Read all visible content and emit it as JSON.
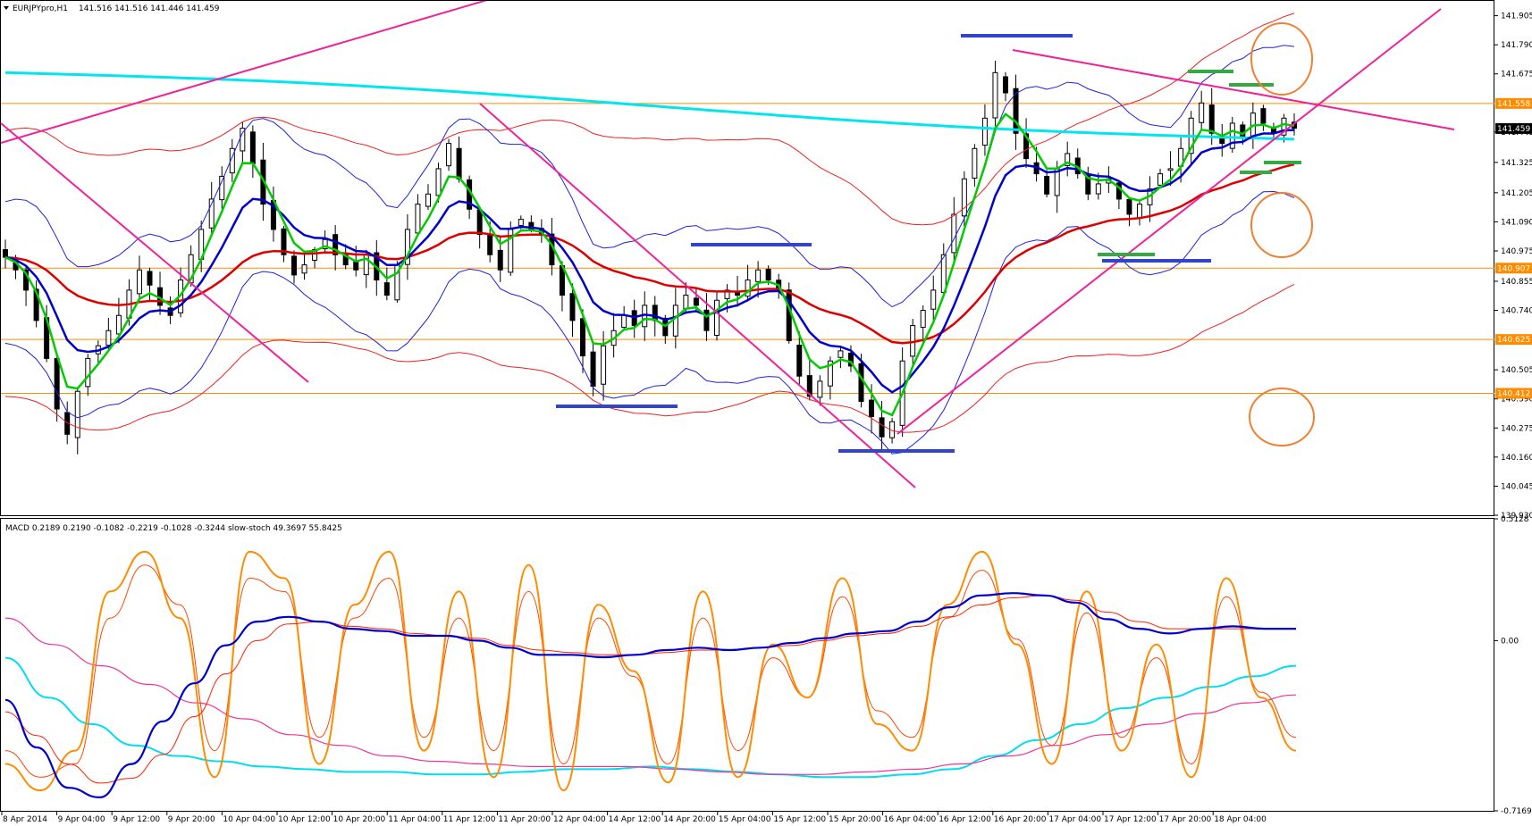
{
  "window": {
    "title": "EURJPYpro,H1",
    "ohlc": "141.516 141.516 141.446 141.459"
  },
  "chart_data": [
    {
      "type": "candlestick",
      "symbol": "EURJPYpro",
      "timeframe": "H1",
      "ylim": [
        139.93,
        141.96
      ],
      "y_ticks": [
        "141.905",
        "141.790",
        "141.675",
        "141.445",
        "141.325",
        "141.205",
        "141.090",
        "140.975",
        "140.855",
        "140.740",
        "140.505",
        "140.390",
        "140.275",
        "140.160",
        "140.045",
        "139.930"
      ],
      "x_ticks": [
        "8 Apr 2014",
        "9 Apr 04:00",
        "9 Apr 12:00",
        "9 Apr 20:00",
        "10 Apr 04:00",
        "10 Apr 12:00",
        "10 Apr 20:00",
        "11 Apr 04:00",
        "11 Apr 12:00",
        "11 Apr 20:00",
        "12 Apr 04:00",
        "14 Apr 12:00",
        "14 Apr 20:00",
        "15 Apr 04:00",
        "15 Apr 12:00",
        "15 Apr 20:00",
        "16 Apr 04:00",
        "16 Apr 12:00",
        "16 Apr 20:00",
        "17 Apr 04:00",
        "17 Apr 12:00",
        "17 Apr 20:00",
        "18 Apr 04:00"
      ],
      "price_levels": [
        {
          "value": "141.558",
          "color": "#FF8C00"
        },
        {
          "value": "140.907",
          "color": "#FF8C00"
        },
        {
          "value": "140.625",
          "color": "#FF8C00"
        },
        {
          "value": "140.412",
          "color": "#FF8C00"
        }
      ],
      "current_price": "141.459",
      "close_path": [
        140.95,
        140.9,
        140.82,
        140.7,
        140.55,
        140.35,
        140.25,
        140.42,
        140.55,
        140.6,
        140.66,
        140.72,
        140.82,
        140.9,
        140.84,
        140.76,
        140.72,
        140.86,
        140.96,
        141.06,
        141.18,
        141.27,
        141.38,
        141.46,
        141.32,
        141.16,
        141.06,
        140.96,
        140.88,
        140.92,
        140.98,
        141.02,
        140.96,
        140.92,
        140.9,
        140.96,
        140.86,
        140.8,
        140.92,
        141.06,
        141.16,
        141.2,
        141.3,
        141.4,
        141.26,
        141.14,
        141.04,
        140.96,
        140.9,
        141.06,
        141.1,
        141.06,
        141.04,
        140.92,
        140.8,
        140.7,
        140.56,
        140.44,
        140.6,
        140.66,
        140.72,
        140.68,
        140.76,
        140.7,
        140.64,
        140.76,
        140.8,
        140.76,
        140.66,
        140.78,
        140.82,
        140.8,
        140.86,
        140.9,
        140.86,
        140.82,
        140.62,
        140.48,
        140.4,
        140.46,
        140.54,
        140.58,
        140.52,
        140.38,
        140.32,
        140.24,
        140.3,
        140.54,
        140.68,
        140.74,
        140.82,
        140.96,
        141.12,
        141.26,
        141.38,
        141.5,
        141.68,
        141.6,
        141.44,
        141.34,
        141.28,
        141.2,
        141.3,
        141.36,
        141.28,
        141.2,
        141.24,
        141.26,
        141.18,
        141.12,
        141.16,
        141.22,
        141.28,
        141.3,
        141.38,
        141.5,
        141.56,
        141.44,
        141.4,
        141.48,
        141.42,
        141.52,
        141.48,
        141.44,
        141.5,
        141.46
      ],
      "indicators": [
        {
          "name": "EMA fast",
          "color": "#00CC00"
        },
        {
          "name": "EMA mid",
          "color": "#0000CC"
        },
        {
          "name": "EMA slow",
          "color": "#DD0000"
        },
        {
          "name": "SMA long",
          "color": "#00E5EE"
        },
        {
          "name": "Bollinger inner",
          "color": "#2020DD"
        },
        {
          "name": "Bollinger outer",
          "color": "#EE2020"
        }
      ]
    },
    {
      "type": "line",
      "label": "MACD 0.2189 0.2190 -0.1082 -0.2219 -0.1028 -0.3244  slow-stoch 49.3697 55.8425",
      "ylim": [
        -0.7169,
        0.5128
      ],
      "y_ticks": [
        "0.5128",
        "0.00",
        "-0.7169"
      ],
      "series": [
        {
          "name": "MACD",
          "color": "#0000CC",
          "values": [
            -0.25,
            -0.45,
            -0.62,
            -0.66,
            -0.52,
            -0.34,
            -0.18,
            -0.02,
            0.08,
            0.1,
            0.08,
            0.05,
            0.04,
            0.02,
            0.02,
            0.0,
            -0.03,
            -0.06,
            -0.06,
            -0.07,
            -0.06,
            -0.04,
            -0.03,
            -0.04,
            -0.03,
            -0.01,
            0.01,
            0.03,
            0.04,
            0.08,
            0.14,
            0.19,
            0.2,
            0.19,
            0.16,
            0.09,
            0.05,
            0.03,
            0.05,
            0.06,
            0.05,
            0.05
          ]
        },
        {
          "name": "Signal",
          "color": "#FF2200",
          "values": [
            -0.3,
            -0.4,
            -0.52,
            -0.6,
            -0.58,
            -0.48,
            -0.32,
            -0.14,
            0.0,
            0.07,
            0.08,
            0.06,
            0.05,
            0.03,
            0.02,
            0.01,
            -0.02,
            -0.04,
            -0.05,
            -0.06,
            -0.06,
            -0.05,
            -0.04,
            -0.04,
            -0.03,
            -0.02,
            0.0,
            0.02,
            0.03,
            0.06,
            0.1,
            0.15,
            0.18,
            0.19,
            0.17,
            0.12,
            0.08,
            0.05,
            0.05,
            0.05,
            0.05,
            0.05
          ]
        },
        {
          "name": "Stoch main",
          "color": "#FF8C00",
          "values": [
            15,
            5,
            20,
            80,
            95,
            70,
            10,
            95,
            85,
            15,
            75,
            95,
            20,
            80,
            10,
            90,
            5,
            75,
            50,
            8,
            80,
            10,
            60,
            40,
            85,
            30,
            20,
            75,
            95,
            60,
            15,
            80,
            20,
            60,
            10,
            85,
            40,
            20
          ]
        },
        {
          "name": "Stoch signal",
          "color": "#FF4400",
          "values": [
            20,
            10,
            15,
            70,
            90,
            75,
            20,
            85,
            80,
            25,
            70,
            85,
            25,
            70,
            20,
            80,
            15,
            70,
            48,
            15,
            70,
            20,
            55,
            40,
            78,
            35,
            25,
            70,
            88,
            62,
            22,
            72,
            25,
            55,
            15,
            78,
            42,
            25
          ]
        },
        {
          "name": "Slow line A",
          "color": "#00DDEE",
          "values": [
            55,
            40,
            30,
            22,
            18,
            16,
            14,
            13,
            12,
            12,
            11,
            11,
            12,
            13,
            13,
            14,
            13,
            12,
            11,
            10,
            10,
            11,
            13,
            18,
            24,
            30,
            36,
            40,
            44,
            48,
            52
          ]
        },
        {
          "name": "Slow line B",
          "color": "#EE3399",
          "values": [
            70,
            60,
            52,
            45,
            38,
            32,
            26,
            22,
            18,
            16,
            15,
            14,
            14,
            14,
            13,
            12,
            11,
            11,
            12,
            13,
            15,
            18,
            22,
            26,
            30,
            34,
            38,
            41
          ]
        }
      ]
    }
  ]
}
